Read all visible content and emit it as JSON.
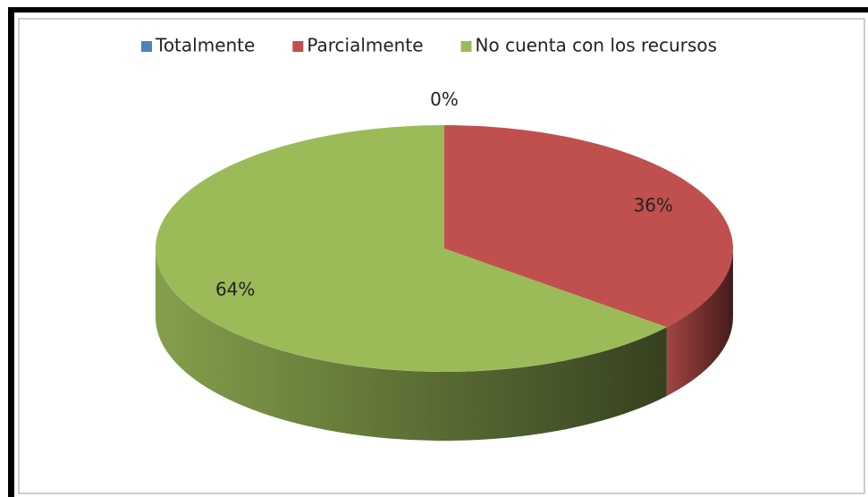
{
  "chart_data": {
    "type": "pie",
    "categories": [
      "Totalmente",
      "Parcialmente",
      "No cuenta con los recursos"
    ],
    "values": [
      0,
      36,
      64
    ],
    "value_labels": [
      "0%",
      "36%",
      "64%"
    ],
    "colors": [
      "#4f81bd",
      "#c0504d",
      "#9bbb59"
    ],
    "legend": "top"
  }
}
